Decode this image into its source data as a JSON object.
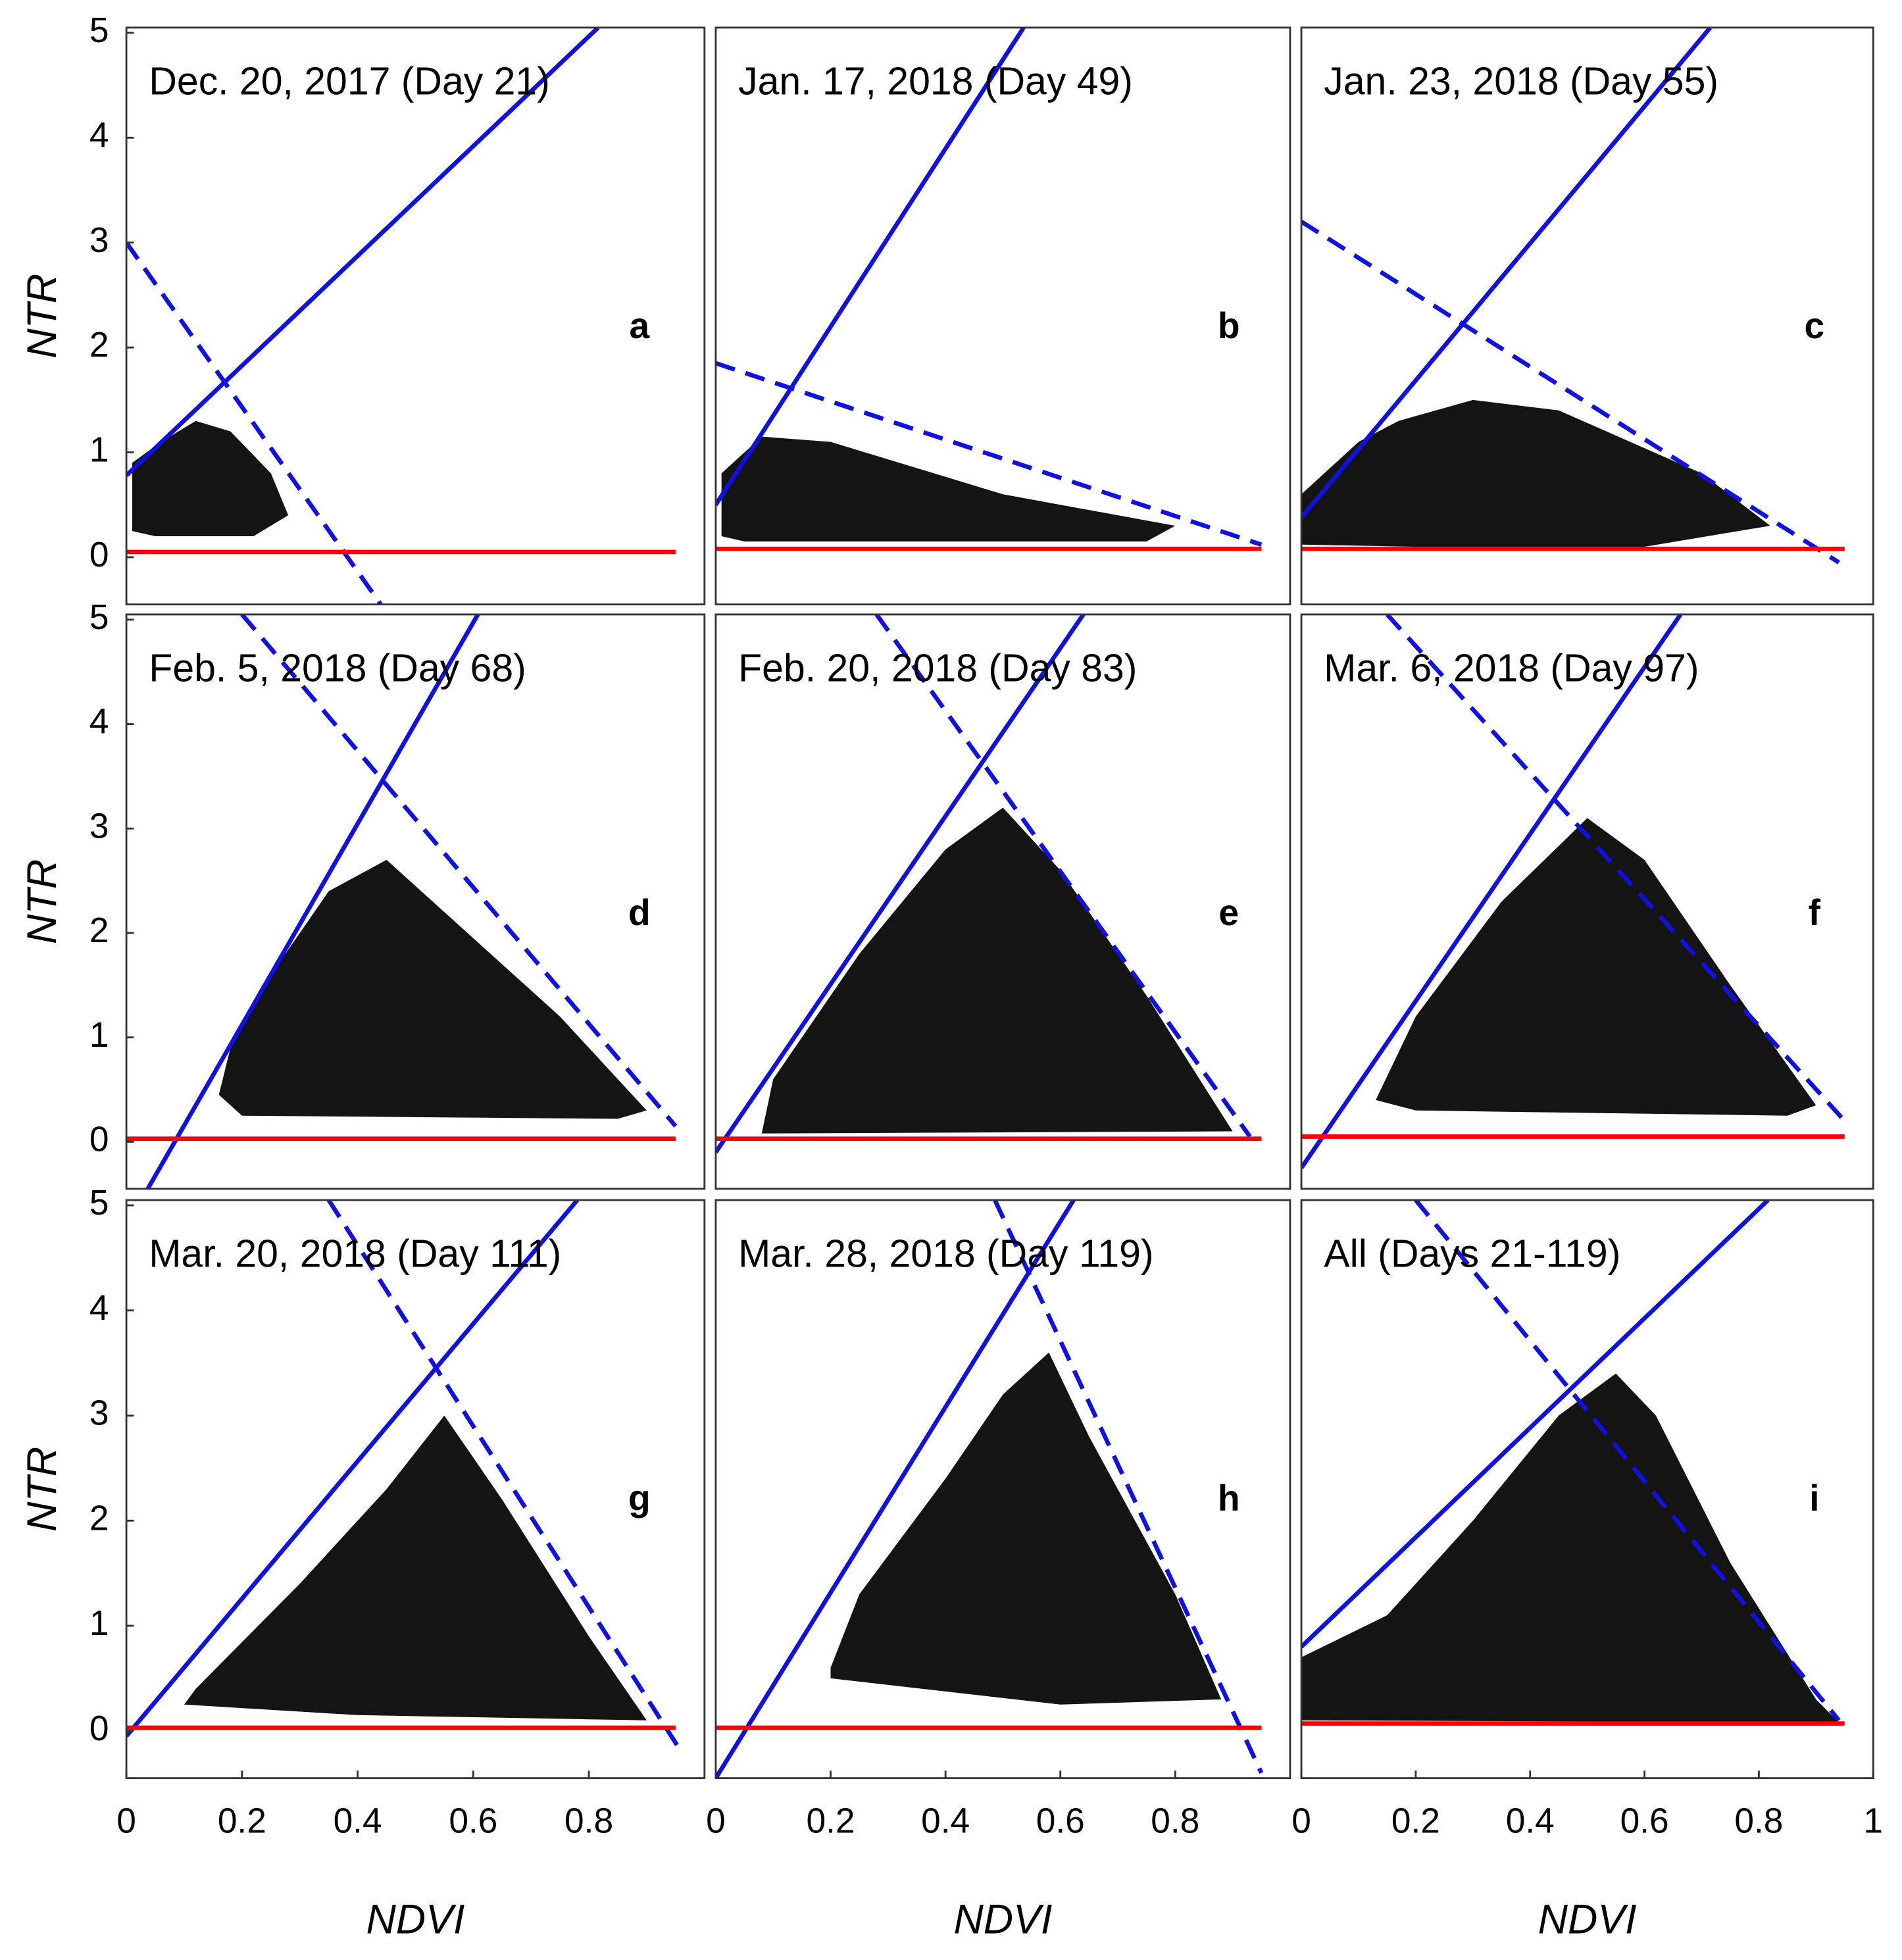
{
  "chart_data": [
    {
      "type": "scatter",
      "title": "Dec. 20, 2017 (Day 21)",
      "panel_label": "a",
      "ylabel": "NTR",
      "xlim": [
        0,
        1
      ],
      "ylim": [
        -0.45,
        5.05
      ],
      "yticks": [
        0,
        1,
        2,
        3,
        4,
        5
      ],
      "cloud": {
        "color": "#000000",
        "x": [
          0.01,
          0.01,
          0.06,
          0.12,
          0.18,
          0.25,
          0.28,
          0.22,
          0.05
        ],
        "y": [
          0.25,
          0.9,
          1.1,
          1.3,
          1.2,
          0.8,
          0.4,
          0.2,
          0.2
        ]
      },
      "lines": [
        {
          "color": "#1010e0",
          "dash": false,
          "x": [
            0,
            0.816
          ],
          "y": [
            0.78,
            5.05
          ]
        },
        {
          "color": "#1010e0",
          "dash": true,
          "x": [
            0,
            0.44
          ],
          "y": [
            3.0,
            -0.45
          ]
        },
        {
          "color": "#ff0000",
          "dash": false,
          "x": [
            0,
            0.95
          ],
          "y": [
            0.05,
            0.05
          ]
        }
      ]
    },
    {
      "type": "scatter",
      "title": "Jan. 17, 2018 (Day 49)",
      "panel_label": "b",
      "xlim": [
        0,
        1
      ],
      "ylim": [
        -0.45,
        5.05
      ],
      "cloud": {
        "color": "#000000",
        "x": [
          0.01,
          0.01,
          0.08,
          0.2,
          0.5,
          0.8,
          0.75,
          0.4,
          0.05
        ],
        "y": [
          0.2,
          0.8,
          1.15,
          1.1,
          0.6,
          0.3,
          0.15,
          0.15,
          0.15
        ]
      },
      "lines": [
        {
          "color": "#1010e0",
          "dash": false,
          "x": [
            0,
            0.536
          ],
          "y": [
            0.5,
            5.05
          ]
        },
        {
          "color": "#1010e0",
          "dash": true,
          "x": [
            0,
            0.95
          ],
          "y": [
            1.85,
            0.12
          ]
        },
        {
          "color": "#ff0000",
          "dash": false,
          "x": [
            0,
            0.95
          ],
          "y": [
            0.08,
            0.08
          ]
        }
      ]
    },
    {
      "type": "scatter",
      "title": "Jan. 23, 2018 (Day 55)",
      "panel_label": "c",
      "xlim": [
        0,
        1
      ],
      "ylim": [
        -0.45,
        5.05
      ],
      "cloud": {
        "color": "#000000",
        "x": [
          0,
          0,
          0.1,
          0.17,
          0.3,
          0.45,
          0.7,
          0.82,
          0.6,
          0.2
        ],
        "y": [
          0.12,
          0.6,
          1.1,
          1.3,
          1.5,
          1.4,
          0.8,
          0.3,
          0.1,
          0.1
        ]
      },
      "lines": [
        {
          "color": "#1010e0",
          "dash": false,
          "x": [
            0,
            0.715
          ],
          "y": [
            0.38,
            5.05
          ]
        },
        {
          "color": "#1010e0",
          "dash": true,
          "x": [
            0,
            0.94
          ],
          "y": [
            3.2,
            -0.05
          ]
        },
        {
          "color": "#ff0000",
          "dash": false,
          "x": [
            0,
            0.95
          ],
          "y": [
            0.08,
            0.08
          ]
        }
      ]
    },
    {
      "type": "scatter",
      "title": "Feb. 5, 2018 (Day 68)",
      "panel_label": "d",
      "ylabel": "NTR",
      "xlim": [
        0,
        1
      ],
      "ylim": [
        -0.45,
        5.05
      ],
      "yticks": [
        0,
        1,
        2,
        3,
        4,
        5
      ],
      "cloud": {
        "color": "#000000",
        "x": [
          0.16,
          0.18,
          0.25,
          0.35,
          0.45,
          0.55,
          0.75,
          0.9,
          0.85,
          0.2
        ],
        "y": [
          0.45,
          0.9,
          1.6,
          2.4,
          2.7,
          2.2,
          1.2,
          0.3,
          0.22,
          0.25
        ]
      },
      "lines": [
        {
          "color": "#1010e0",
          "dash": false,
          "x": [
            0.037,
            0.608
          ],
          "y": [
            -0.45,
            5.05
          ]
        },
        {
          "color": "#1010e0",
          "dash": true,
          "x": [
            0.2,
            0.95
          ],
          "y": [
            5.05,
            0.15
          ]
        },
        {
          "color": "#ff0000",
          "dash": false,
          "x": [
            0,
            0.95
          ],
          "y": [
            0.03,
            0.03
          ]
        }
      ]
    },
    {
      "type": "scatter",
      "title": "Feb. 20, 2018 (Day 83)",
      "panel_label": "e",
      "xlim": [
        0,
        1
      ],
      "ylim": [
        -0.45,
        5.05
      ],
      "cloud": {
        "color": "#000000",
        "x": [
          0.08,
          0.1,
          0.25,
          0.4,
          0.5,
          0.6,
          0.75,
          0.9
        ],
        "y": [
          0.08,
          0.6,
          1.8,
          2.8,
          3.2,
          2.6,
          1.4,
          0.1
        ]
      },
      "lines": [
        {
          "color": "#1010e0",
          "dash": false,
          "x": [
            0,
            0.64
          ],
          "y": [
            -0.1,
            5.05
          ]
        },
        {
          "color": "#1010e0",
          "dash": true,
          "x": [
            0.28,
            0.93
          ],
          "y": [
            5.05,
            0.05
          ]
        },
        {
          "color": "#ff0000",
          "dash": false,
          "x": [
            0,
            0.95
          ],
          "y": [
            0.03,
            0.03
          ]
        }
      ]
    },
    {
      "type": "scatter",
      "title": "Mar. 6, 2018 (Day 97)",
      "panel_label": "f",
      "xlim": [
        0,
        1
      ],
      "ylim": [
        -0.45,
        5.05
      ],
      "cloud": {
        "color": "#000000",
        "x": [
          0.13,
          0.2,
          0.35,
          0.5,
          0.6,
          0.75,
          0.9,
          0.85,
          0.2
        ],
        "y": [
          0.4,
          1.2,
          2.3,
          3.1,
          2.7,
          1.5,
          0.35,
          0.25,
          0.3
        ]
      },
      "lines": [
        {
          "color": "#1010e0",
          "dash": false,
          "x": [
            0,
            0.663
          ],
          "y": [
            -0.25,
            5.05
          ]
        },
        {
          "color": "#1010e0",
          "dash": true,
          "x": [
            0.15,
            0.95
          ],
          "y": [
            5.05,
            0.2
          ]
        },
        {
          "color": "#ff0000",
          "dash": false,
          "x": [
            0,
            0.95
          ],
          "y": [
            0.05,
            0.05
          ]
        }
      ]
    },
    {
      "type": "scatter",
      "title": "Mar. 20, 2018 (Day 111)",
      "panel_label": "g",
      "ylabel": "NTR",
      "xlabel": "NDVI",
      "xlim": [
        0,
        1
      ],
      "ylim": [
        -0.45,
        5.05
      ],
      "yticks": [
        0,
        1,
        2,
        3,
        4,
        5
      ],
      "xticks": [
        0,
        0.2,
        0.4,
        0.6,
        0.8
      ],
      "cloud": {
        "color": "#000000",
        "x": [
          0.1,
          0.12,
          0.3,
          0.45,
          0.55,
          0.65,
          0.8,
          0.9,
          0.4
        ],
        "y": [
          0.25,
          0.4,
          1.4,
          2.3,
          3.0,
          2.2,
          0.9,
          0.1,
          0.15
        ]
      },
      "lines": [
        {
          "color": "#1010e0",
          "dash": false,
          "x": [
            0,
            0.78
          ],
          "y": [
            -0.05,
            5.05
          ]
        },
        {
          "color": "#1010e0",
          "dash": true,
          "x": [
            0.35,
            0.96
          ],
          "y": [
            5.05,
            -0.2
          ]
        },
        {
          "color": "#ff0000",
          "dash": false,
          "x": [
            0,
            0.95
          ],
          "y": [
            0.03,
            0.03
          ]
        }
      ]
    },
    {
      "type": "scatter",
      "title": "Mar. 28, 2018 (Day 119)",
      "panel_label": "h",
      "xlabel": "NDVI",
      "xlim": [
        0,
        1
      ],
      "ylim": [
        -0.45,
        5.05
      ],
      "xticks": [
        0,
        0.2,
        0.4,
        0.6,
        0.8
      ],
      "cloud": {
        "color": "#000000",
        "x": [
          0.2,
          0.25,
          0.4,
          0.5,
          0.58,
          0.65,
          0.8,
          0.88,
          0.6,
          0.2
        ],
        "y": [
          0.6,
          1.3,
          2.4,
          3.2,
          3.6,
          2.8,
          1.3,
          0.3,
          0.25,
          0.5
        ]
      },
      "lines": [
        {
          "color": "#1010e0",
          "dash": false,
          "x": [
            0,
            0.623
          ],
          "y": [
            -0.45,
            5.05
          ]
        },
        {
          "color": "#1010e0",
          "dash": true,
          "x": [
            0.486,
            0.95
          ],
          "y": [
            5.05,
            -0.4
          ]
        },
        {
          "color": "#ff0000",
          "dash": false,
          "x": [
            0,
            0.95
          ],
          "y": [
            0.03,
            0.03
          ]
        }
      ]
    },
    {
      "type": "scatter",
      "title": "All (Days 21-119)",
      "panel_label": "i",
      "xlabel": "NDVI",
      "xlim": [
        0,
        1
      ],
      "ylim": [
        -0.45,
        5.05
      ],
      "xticks": [
        0,
        0.2,
        0.4,
        0.6,
        0.8,
        1
      ],
      "cloud": {
        "color": "#000000",
        "x": [
          0,
          0,
          0.15,
          0.3,
          0.45,
          0.55,
          0.62,
          0.75,
          0.9,
          0.94
        ],
        "y": [
          0.1,
          0.7,
          1.1,
          2.0,
          3.0,
          3.4,
          3.0,
          1.6,
          0.3,
          0.08
        ]
      },
      "lines": [
        {
          "color": "#1010e0",
          "dash": false,
          "x": [
            0,
            0.816
          ],
          "y": [
            0.8,
            5.05
          ]
        },
        {
          "color": "#1010e0",
          "dash": true,
          "x": [
            0.2,
            0.94
          ],
          "y": [
            5.05,
            0.1
          ]
        },
        {
          "color": "#ff0000",
          "dash": false,
          "x": [
            0,
            0.95
          ],
          "y": [
            0.07,
            0.07
          ]
        }
      ]
    }
  ]
}
